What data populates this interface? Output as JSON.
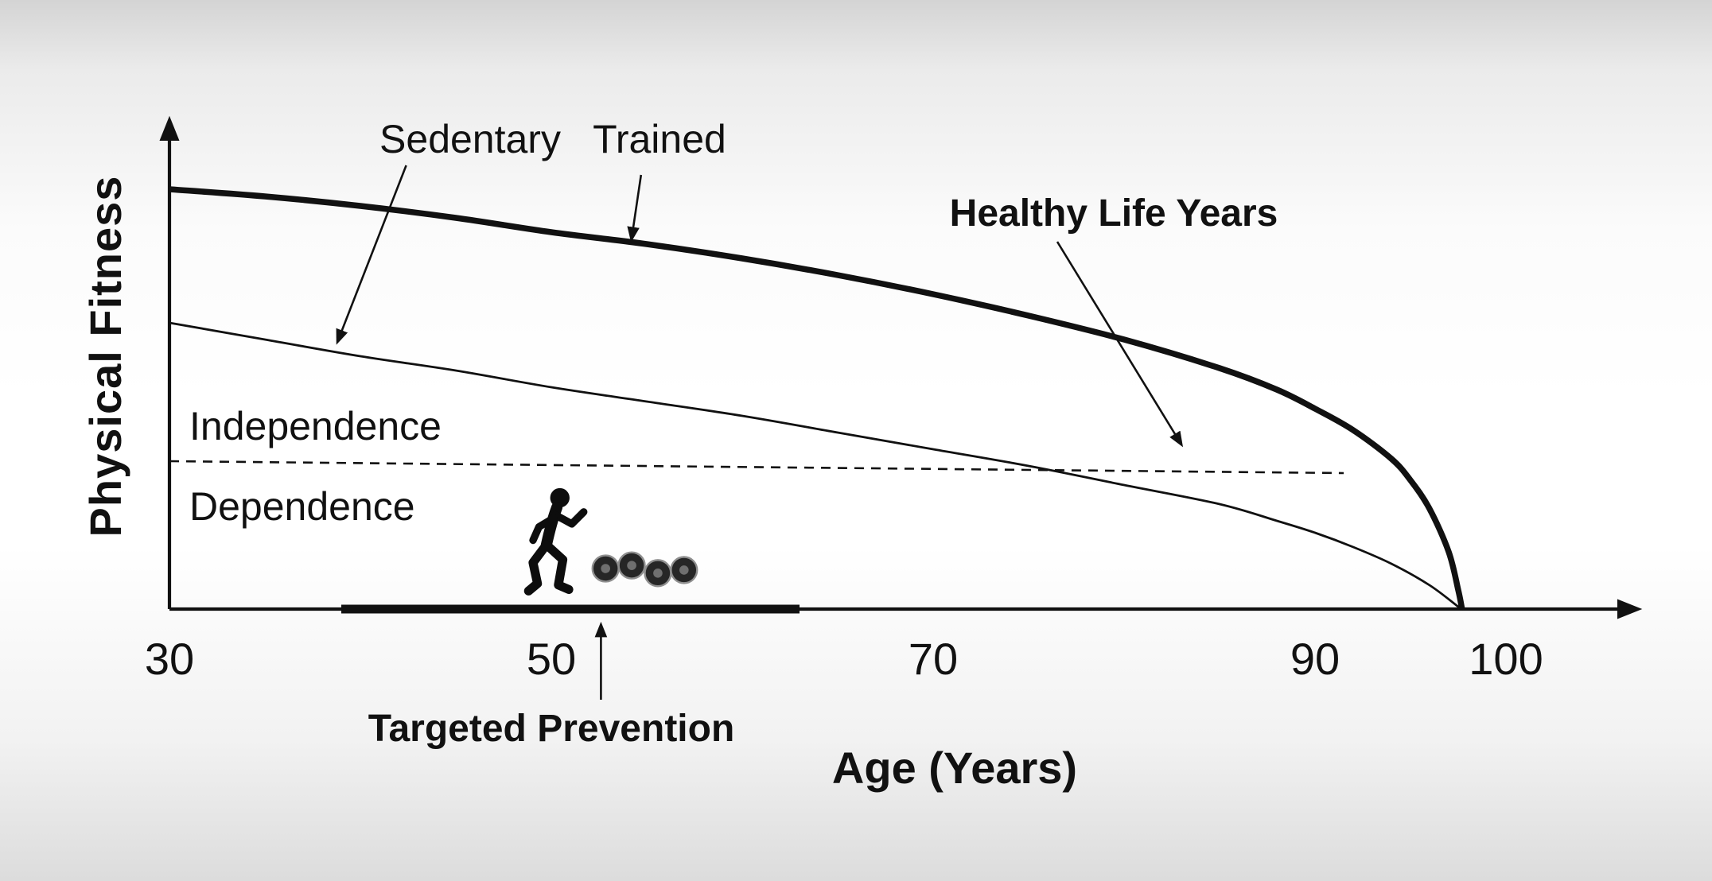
{
  "chart_data": {
    "type": "line",
    "title": "",
    "xlabel": "Age (Years)",
    "ylabel": "Physical Fitness",
    "xlim": [
      30,
      105
    ],
    "ylim": [
      0,
      1.05
    ],
    "x_ticks": [
      30,
      50,
      70,
      90,
      100
    ],
    "grid": false,
    "legend": false,
    "series": [
      {
        "name": "Trained",
        "style": "solid",
        "stroke": "thick",
        "points": [
          [
            30,
            0.88
          ],
          [
            35,
            0.865
          ],
          [
            40,
            0.845
          ],
          [
            45,
            0.82
          ],
          [
            50,
            0.79
          ],
          [
            55,
            0.765
          ],
          [
            60,
            0.735
          ],
          [
            65,
            0.7
          ],
          [
            70,
            0.66
          ],
          [
            75,
            0.615
          ],
          [
            80,
            0.565
          ],
          [
            85,
            0.505
          ],
          [
            88,
            0.46
          ],
          [
            90,
            0.42
          ],
          [
            92,
            0.375
          ],
          [
            94,
            0.315
          ],
          [
            95,
            0.27
          ],
          [
            96,
            0.21
          ],
          [
            97,
            0.12
          ],
          [
            97.5,
            0.04
          ],
          [
            97.7,
            0
          ]
        ]
      },
      {
        "name": "Sedentary",
        "style": "solid",
        "stroke": "thin",
        "points": [
          [
            30,
            0.6
          ],
          [
            35,
            0.565
          ],
          [
            40,
            0.53
          ],
          [
            45,
            0.5
          ],
          [
            50,
            0.465
          ],
          [
            55,
            0.435
          ],
          [
            60,
            0.405
          ],
          [
            65,
            0.37
          ],
          [
            70,
            0.335
          ],
          [
            75,
            0.3
          ],
          [
            80,
            0.26
          ],
          [
            85,
            0.22
          ],
          [
            88,
            0.185
          ],
          [
            90,
            0.16
          ],
          [
            92,
            0.13
          ],
          [
            94,
            0.095
          ],
          [
            96,
            0.05
          ],
          [
            97.5,
            0.005
          ],
          [
            97.7,
            0
          ]
        ]
      },
      {
        "name": "Independence threshold",
        "style": "dashed",
        "stroke": "thin",
        "points": [
          [
            30,
            0.31
          ],
          [
            91.5,
            0.285
          ]
        ]
      }
    ],
    "threshold_labels": {
      "above": "Independence",
      "below": "Dependence"
    },
    "annotations": [
      {
        "text": "Sedentary",
        "arrow_from": [
          42.4,
          0.93
        ],
        "arrow_to": [
          38.8,
          0.56
        ]
      },
      {
        "text": "Trained",
        "arrow_from": [
          54.7,
          0.91
        ],
        "arrow_to": [
          54.2,
          0.775
        ]
      },
      {
        "text": "Healthy Life Years",
        "arrow_from": [
          76.5,
          0.77
        ],
        "arrow_to": [
          83,
          0.345
        ]
      },
      {
        "text": "Targeted Prevention",
        "arrow_from": [
          52.6,
          -0.19
        ],
        "arrow_to": [
          52.6,
          -0.033
        ]
      }
    ],
    "prevention_bar": {
      "x_start": 39,
      "x_end": 63,
      "y": 0
    },
    "icons": [
      "runner-icon",
      "dumbbells-icon"
    ],
    "colors": {
      "ink": "#111111",
      "background_top": "#d4d4d4",
      "background_middle": "#ffffff",
      "background_bottom": "#dcdcdc"
    }
  }
}
